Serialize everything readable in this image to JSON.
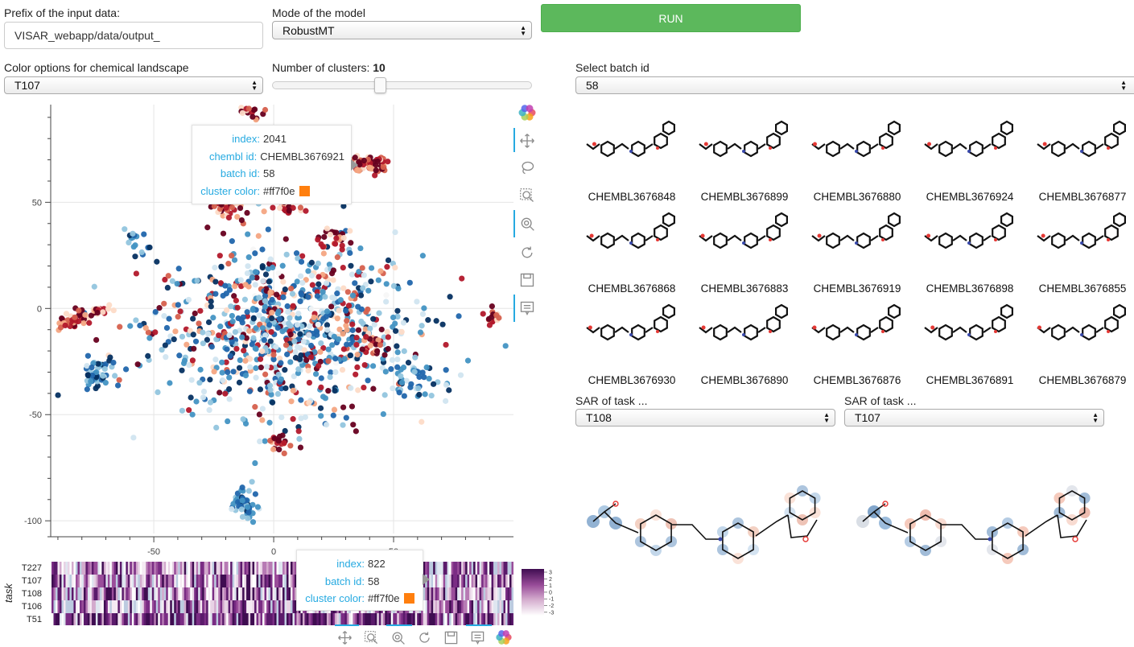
{
  "controls": {
    "prefix_label": "Prefix of the input data:",
    "prefix_value": "VISAR_webapp/data/output_",
    "mode_label": "Mode of the model",
    "mode_value": "RobustMT",
    "run_label": "RUN",
    "color_label": "Color options for chemical landscape",
    "color_value": "T107",
    "clusters_label": "Number of clusters: ",
    "clusters_value": "10",
    "clusters_slider_fraction": 0.41,
    "batch_label": "Select batch id",
    "batch_value": "58"
  },
  "scatter": {
    "x_ticks": [
      "-50",
      "0",
      "50"
    ],
    "y_ticks": [
      "50",
      "0",
      "-50",
      "-100"
    ],
    "xlim": [
      -93,
      100
    ],
    "ylim": [
      -106,
      96
    ]
  },
  "tooltip_scatter": {
    "rows": [
      {
        "key": "index:",
        "value": "2041"
      },
      {
        "key": "chembl id:",
        "value": "CHEMBL3676921"
      },
      {
        "key": "batch id:",
        "value": "58"
      },
      {
        "key": "cluster color:",
        "value": "#ff7f0e"
      }
    ],
    "swatch_color": "#ff7f0e"
  },
  "heatmap": {
    "ylabel": "task",
    "rows": [
      "T227",
      "T107",
      "T108",
      "T106",
      "T51"
    ],
    "colorbar_ticks": [
      "3",
      "2",
      "1",
      "0",
      "-1",
      "-2",
      "-3"
    ]
  },
  "tooltip_heatmap": {
    "rows": [
      {
        "key": "index:",
        "value": "822"
      },
      {
        "key": "batch id:",
        "value": "58"
      },
      {
        "key": "cluster color:",
        "value": "#ff7f0e"
      }
    ],
    "swatch_color": "#ff7f0e"
  },
  "molecules": [
    {
      "id": "CHEMBL3676848"
    },
    {
      "id": "CHEMBL3676899"
    },
    {
      "id": "CHEMBL3676880"
    },
    {
      "id": "CHEMBL3676924"
    },
    {
      "id": "CHEMBL3676877"
    },
    {
      "id": "CHEMBL3676868"
    },
    {
      "id": "CHEMBL3676883"
    },
    {
      "id": "CHEMBL3676919"
    },
    {
      "id": "CHEMBL3676898"
    },
    {
      "id": "CHEMBL3676855"
    },
    {
      "id": "CHEMBL3676930"
    },
    {
      "id": "CHEMBL3676890"
    },
    {
      "id": "CHEMBL3676876"
    },
    {
      "id": "CHEMBL3676891"
    },
    {
      "id": "CHEMBL3676879"
    }
  ],
  "sar": {
    "left_label": "SAR of task ...",
    "left_value": "T108",
    "right_label": "SAR of task ...",
    "right_value": "T107"
  },
  "toolbar_icons": [
    "bokeh-logo-icon",
    "pan-icon",
    "lasso-icon",
    "box-zoom-icon",
    "wheel-zoom-icon",
    "reset-icon",
    "save-icon",
    "hover-icon"
  ]
}
